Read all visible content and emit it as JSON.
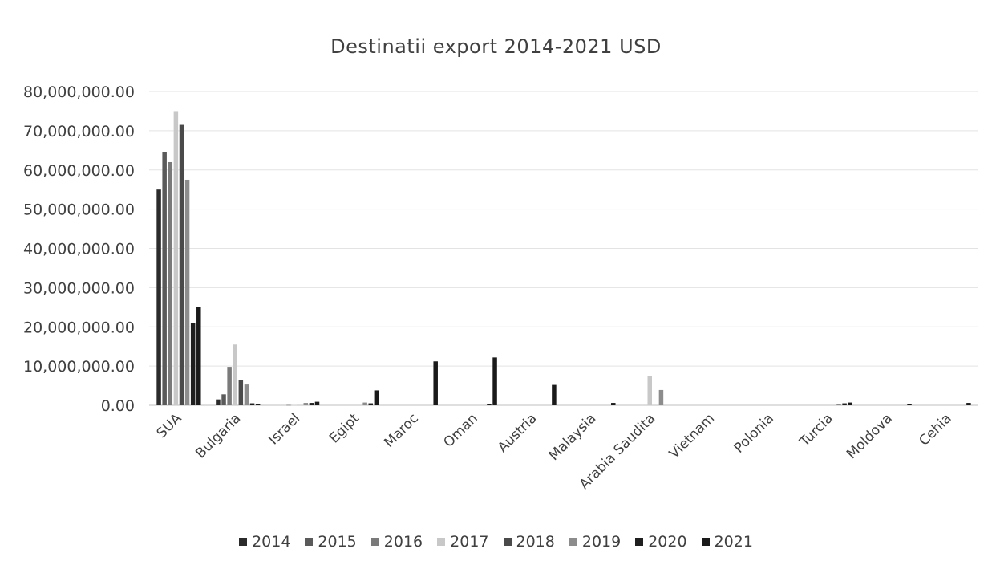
{
  "chart_data": {
    "type": "bar",
    "title": "Destinatii export 2014-2021 USD",
    "xlabel": "",
    "ylabel": "",
    "ylim": [
      0,
      80000000
    ],
    "yticks": [
      "0.00",
      "10,000,000.00",
      "20,000,000.00",
      "30,000,000.00",
      "40,000,000.00",
      "50,000,000.00",
      "60,000,000.00",
      "70,000,000.00",
      "80,000,000.00"
    ],
    "grid": true,
    "legend_position": "bottom",
    "categories": [
      "SUA",
      "Bulgaria",
      "Israel",
      "Egipt",
      "Maroc",
      "Oman",
      "Austria",
      "Malaysia",
      "Arabia Saudita",
      "Vietnam",
      "Polonia",
      "Turcia",
      "Moldova",
      "Cehia"
    ],
    "series": [
      {
        "name": "2014",
        "color": "#2b2b2b",
        "values": [
          55000000,
          1500000,
          0,
          0,
          0,
          0,
          0,
          0,
          0,
          0,
          0,
          0,
          0,
          0
        ]
      },
      {
        "name": "2015",
        "color": "#5a5a5a",
        "values": [
          64500000,
          2800000,
          0,
          0,
          0,
          0,
          0,
          0,
          0,
          0,
          0,
          0,
          0,
          0
        ]
      },
      {
        "name": "2016",
        "color": "#7a7a7a",
        "values": [
          62000000,
          9800000,
          100000,
          0,
          0,
          0,
          0,
          0,
          0,
          0,
          0,
          0,
          0,
          0
        ]
      },
      {
        "name": "2017",
        "color": "#c8c8c8",
        "values": [
          75000000,
          15500000,
          100000,
          0,
          0,
          0,
          0,
          0,
          7500000,
          0,
          0,
          0,
          0,
          0
        ]
      },
      {
        "name": "2018",
        "color": "#4a4a4a",
        "values": [
          71500000,
          6500000,
          0,
          0,
          0,
          0,
          0,
          0,
          0,
          0,
          0,
          0,
          0,
          0
        ]
      },
      {
        "name": "2019",
        "color": "#8c8c8c",
        "values": [
          57500000,
          5300000,
          600000,
          700000,
          0,
          0,
          0,
          0,
          3900000,
          0,
          0,
          300000,
          0,
          0
        ]
      },
      {
        "name": "2020",
        "color": "#1f1f1f",
        "values": [
          21000000,
          500000,
          600000,
          500000,
          0,
          300000,
          0,
          0,
          0,
          0,
          0,
          500000,
          0,
          0
        ]
      },
      {
        "name": "2021",
        "color": "#1a1a1a",
        "values": [
          25000000,
          200000,
          900000,
          3800000,
          11200000,
          12200000,
          5200000,
          600000,
          0,
          0,
          0,
          700000,
          400000,
          600000
        ]
      }
    ]
  }
}
